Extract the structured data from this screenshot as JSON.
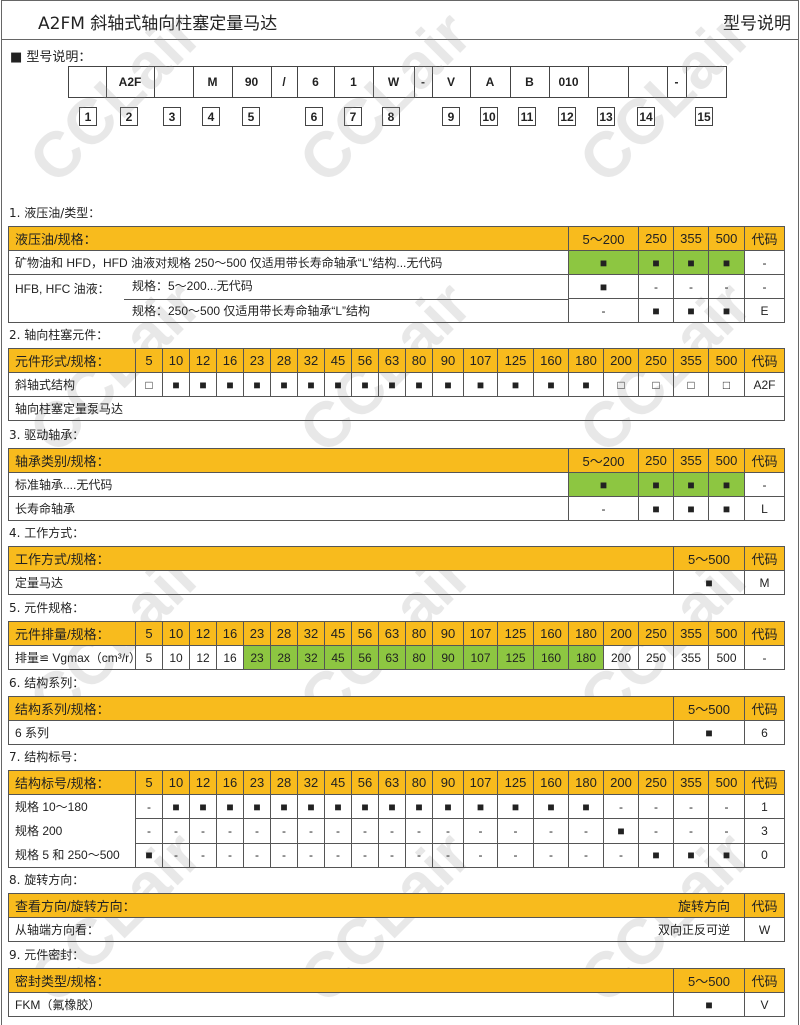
{
  "header": {
    "title": "A2FM 斜轴式轴向柱塞定量马达",
    "right": "型号说明"
  },
  "model": {
    "heading": "■ 型号说明：",
    "boxes": [
      "",
      "A2F",
      "",
      "M",
      "90",
      "/",
      "6",
      "1",
      "W",
      "-",
      "V",
      "A",
      "B",
      "010",
      "",
      "",
      "-",
      ""
    ],
    "numbers": [
      "1",
      "2",
      "3",
      "4",
      "5",
      "6",
      "7",
      "8",
      "9",
      "10",
      "11",
      "12",
      "13",
      "14",
      "15"
    ]
  },
  "watermark": "CCLair",
  "colors": {
    "header": "#f8bb1d",
    "highlight": "#8dc641"
  },
  "sections": [
    {
      "label": "1. 液压油/类型：",
      "type": "four",
      "header": [
        "液压油/规格：",
        "5～200",
        "250",
        "355",
        "500",
        "代码"
      ],
      "rows": [
        {
          "label": "矿物油和 HFD，HFD 油液对规格 250～500 仅适用带长寿命轴承“L”结构...无代码",
          "cells": [
            "■",
            "■",
            "■",
            "■"
          ],
          "code": "-",
          "green": [
            0,
            1,
            2,
            3
          ]
        },
        {
          "group": "HFB, HFC 油液：",
          "label": "规格：5～200...无代码",
          "cells": [
            "■",
            "-",
            "-",
            "-"
          ],
          "code": "-"
        },
        {
          "group": "",
          "label": "规格：250～500 仅适用带长寿命轴承“L”结构",
          "cells": [
            "-",
            "■",
            "■",
            "■"
          ],
          "code": "E"
        }
      ]
    },
    {
      "label": "2. 轴向柱塞元件：",
      "type": "twenty",
      "header": [
        "元件形式/规格：",
        "5",
        "10",
        "12",
        "16",
        "23",
        "28",
        "32",
        "45",
        "56",
        "63",
        "80",
        "90",
        "107",
        "125",
        "160",
        "180",
        "200",
        "250",
        "355",
        "500",
        "代码"
      ],
      "rows": [
        {
          "label": "斜轴式结构",
          "cells": [
            "□",
            "■",
            "■",
            "■",
            "■",
            "■",
            "■",
            "■",
            "■",
            "■",
            "■",
            "■",
            "■",
            "■",
            "■",
            "■",
            "□",
            "□",
            "□",
            "□"
          ],
          "code": "A2F"
        },
        {
          "label": "轴向柱塞定量泵马达",
          "span": true
        }
      ]
    },
    {
      "label": "3. 驱动轴承：",
      "type": "four",
      "header": [
        "轴承类别/规格：",
        "5～200",
        "250",
        "355",
        "500",
        "代码"
      ],
      "rows": [
        {
          "label": "标准轴承....无代码",
          "cells": [
            "■",
            "■",
            "■",
            "■"
          ],
          "code": "-",
          "green": [
            0,
            1,
            2,
            3
          ]
        },
        {
          "label": "长寿命轴承",
          "cells": [
            "-",
            "■",
            "■",
            "■"
          ],
          "code": "L"
        }
      ]
    },
    {
      "label": "4. 工作方式：",
      "type": "two",
      "header": [
        "工作方式/规格：",
        "5～500",
        "代码"
      ],
      "rows": [
        {
          "label": "定量马达",
          "cells": [
            "■"
          ],
          "code": "M"
        }
      ]
    },
    {
      "label": "5. 元件规格：",
      "type": "twenty",
      "header": [
        "元件排量/规格：",
        "5",
        "10",
        "12",
        "16",
        "23",
        "28",
        "32",
        "45",
        "56",
        "63",
        "80",
        "90",
        "107",
        "125",
        "160",
        "180",
        "200",
        "250",
        "355",
        "500",
        "代码"
      ],
      "rows": [
        {
          "label": "排量≌ Vgmax（cm³/r）",
          "cells": [
            "5",
            "10",
            "12",
            "16",
            "23",
            "28",
            "32",
            "45",
            "56",
            "63",
            "80",
            "90",
            "107",
            "125",
            "160",
            "180",
            "200",
            "250",
            "355",
            "500"
          ],
          "code": "-",
          "green": [
            4,
            5,
            6,
            7,
            8,
            9,
            10,
            11,
            12,
            13,
            14,
            15
          ]
        }
      ]
    },
    {
      "label": "6. 结构系列：",
      "type": "two",
      "header": [
        "结构系列/规格：",
        "5～500",
        "代码"
      ],
      "rows": [
        {
          "label": "6 系列",
          "cells": [
            "■"
          ],
          "code": "6"
        }
      ]
    },
    {
      "label": "7. 结构标号：",
      "type": "twenty",
      "merged": true,
      "header": [
        "结构标号/规格：",
        "5",
        "10",
        "12",
        "16",
        "23",
        "28",
        "32",
        "45",
        "56",
        "63",
        "80",
        "90",
        "107",
        "125",
        "160",
        "180",
        "200",
        "250",
        "355",
        "500",
        "代码"
      ],
      "rows": [
        {
          "label": "规格 10～180",
          "cells": [
            "-",
            "■",
            "■",
            "■",
            "■",
            "■",
            "■",
            "■",
            "■",
            "■",
            "■",
            "■",
            "■",
            "■",
            "■",
            "■",
            "-",
            "-",
            "-",
            "-"
          ],
          "code": "1"
        },
        {
          "label": "规格 200",
          "cells": [
            "-",
            "-",
            "-",
            "-",
            "-",
            "-",
            "-",
            "-",
            "-",
            "-",
            "-",
            "-",
            "-",
            "-",
            "-",
            "-",
            "■",
            "-",
            "-",
            "-"
          ],
          "code": "3"
        },
        {
          "label": "规格 5 和 250～500",
          "cells": [
            "■",
            "-",
            "-",
            "-",
            "-",
            "-",
            "-",
            "-",
            "-",
            "-",
            "-",
            "-",
            "-",
            "-",
            "-",
            "-",
            "-",
            "■",
            "■",
            "■"
          ],
          "code": "0"
        }
      ]
    },
    {
      "label": "8. 旋转方向：",
      "type": "rot",
      "header": [
        "查看方向/旋转方向：",
        "旋转方向",
        "代码"
      ],
      "rows": [
        {
          "label": "从轴端方向看：",
          "cells": [
            "双向正反可逆"
          ],
          "code": "W"
        }
      ]
    },
    {
      "label": "9. 元件密封：",
      "type": "two",
      "header": [
        "密封类型/规格：",
        "5～500",
        "代码"
      ],
      "rows": [
        {
          "label": "FKM（氟橡胶）",
          "cells": [
            "■"
          ],
          "code": "V"
        }
      ]
    }
  ]
}
